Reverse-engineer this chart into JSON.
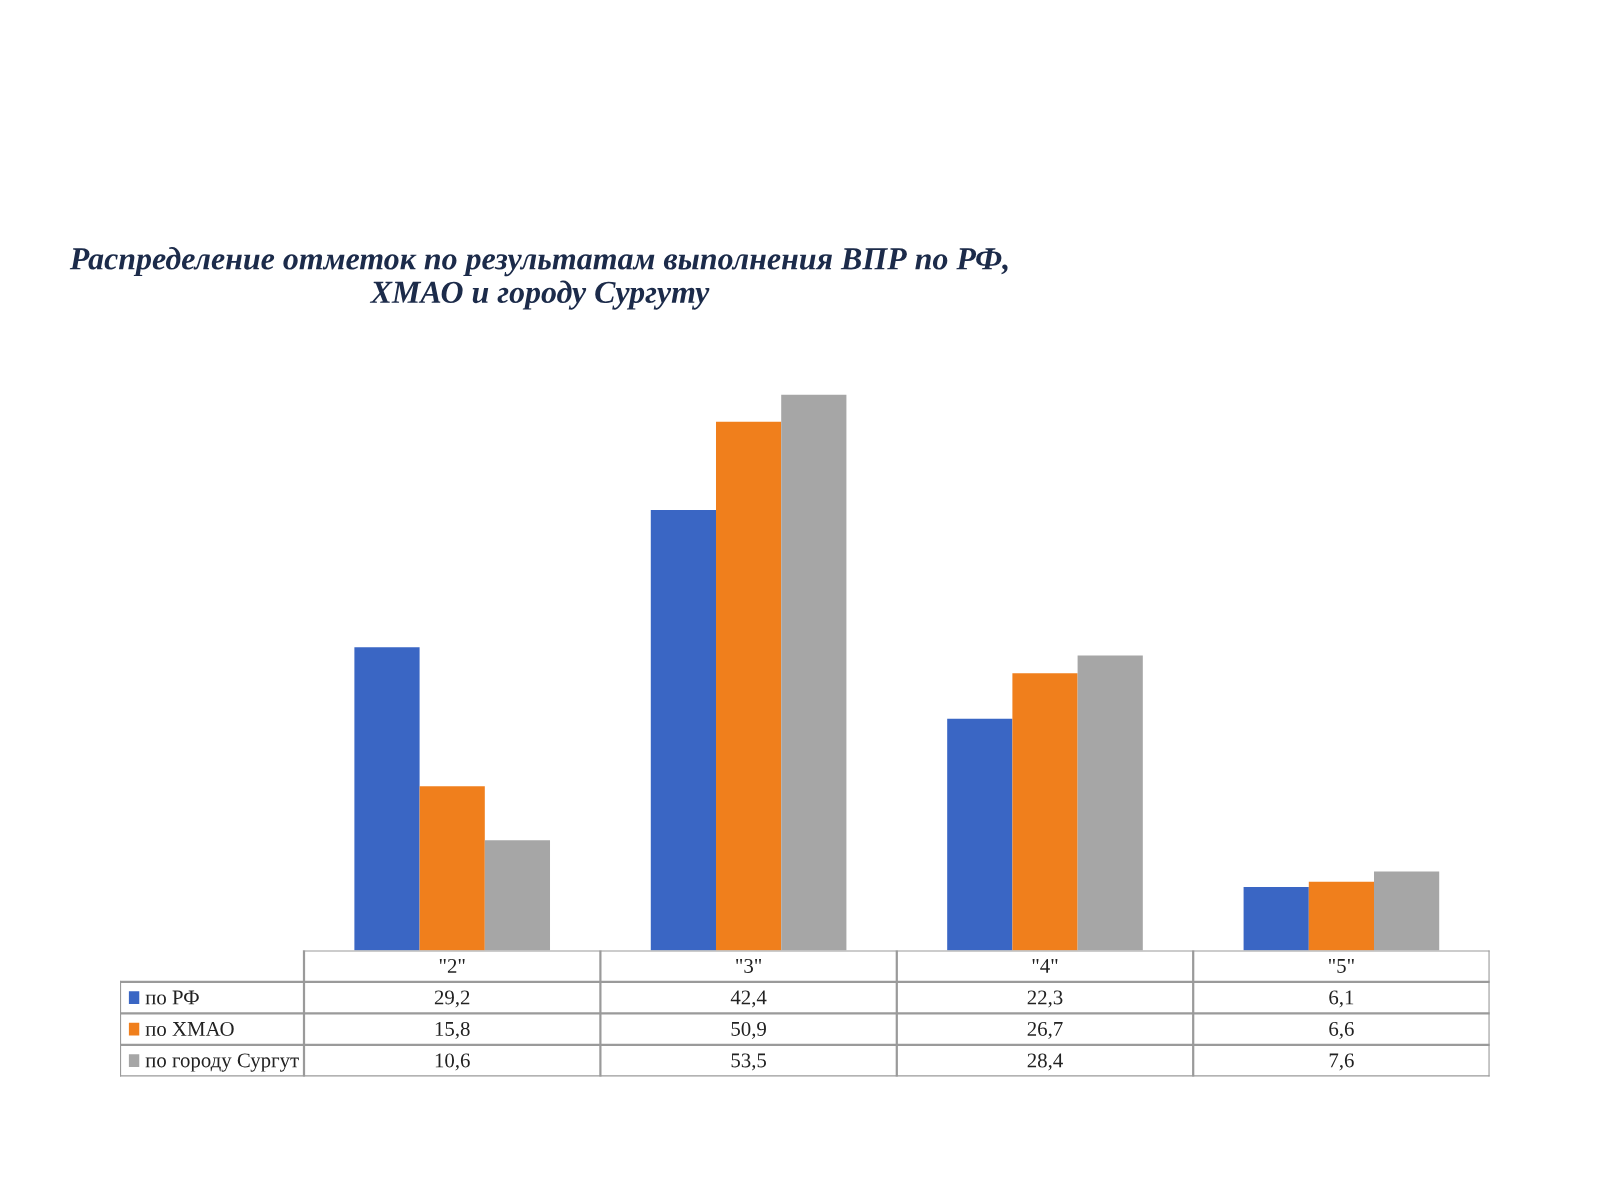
{
  "chart_data": {
    "type": "bar",
    "title": "Распределение отметок по результатам выполнения ВПР по РФ,\nХМАО и городу Сургуту",
    "categories": [
      "\"2\"",
      "\"3\"",
      "\"4\"",
      "\"5\""
    ],
    "series": [
      {
        "name": "по РФ",
        "color": "#3a66c4",
        "values": [
          29.2,
          42.4,
          22.3,
          6.1
        ],
        "value_labels": [
          "29,2",
          "42,4",
          "22,3",
          "6,1"
        ]
      },
      {
        "name": "по ХМАО",
        "color": "#f07f1c",
        "values": [
          15.8,
          50.9,
          26.7,
          6.6
        ],
        "value_labels": [
          "15,8",
          "50,9",
          "26,7",
          "6,6"
        ]
      },
      {
        "name": "по городу Сургут",
        "color": "#a6a6a6",
        "values": [
          10.6,
          53.5,
          28.4,
          7.6
        ],
        "value_labels": [
          "10,6",
          "53,5",
          "28,4",
          "7,6"
        ]
      }
    ],
    "legend": "bottom"
  }
}
